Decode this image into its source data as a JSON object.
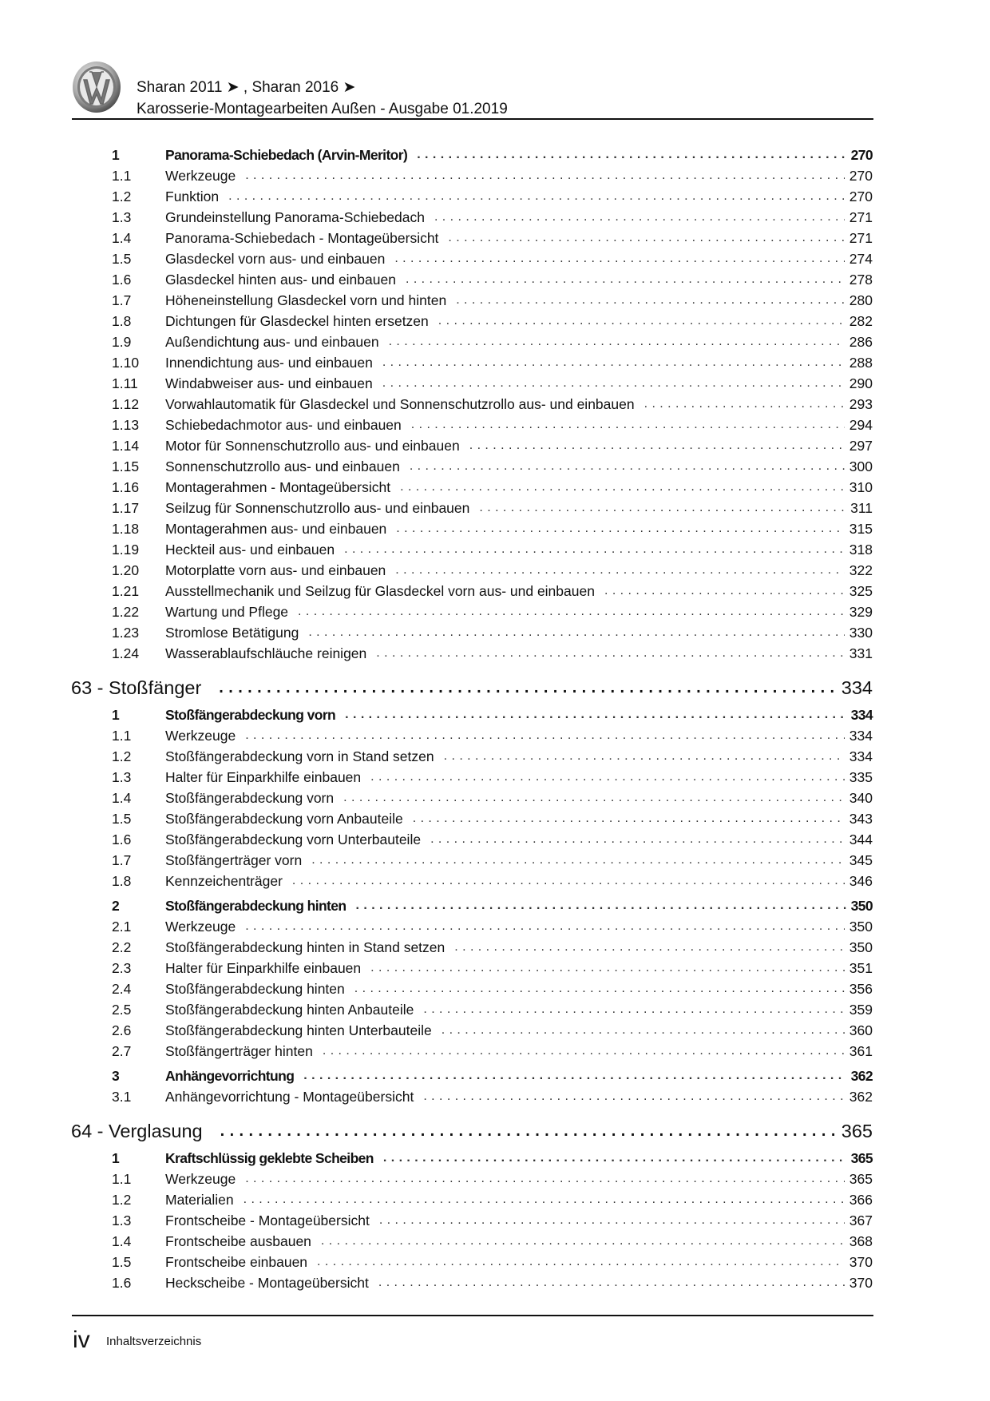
{
  "header": {
    "logo": "VW",
    "line1": "Sharan 2011 ➤ , Sharan 2016 ➤",
    "line2": "Karosserie-Montagearbeiten Außen - Ausgabe 01.2019"
  },
  "sections": [
    {
      "heading": null,
      "entries": [
        {
          "num": "1",
          "title": "Panorama-Schiebedach (Arvin-Meritor)",
          "page": "270",
          "bold": true
        },
        {
          "num": "1.1",
          "title": "Werkzeuge",
          "page": "270"
        },
        {
          "num": "1.2",
          "title": "Funktion",
          "page": "270"
        },
        {
          "num": "1.3",
          "title": "Grundeinstellung Panorama-Schiebedach",
          "page": "271"
        },
        {
          "num": "1.4",
          "title": "Panorama-Schiebedach - Montageübersicht",
          "page": "271"
        },
        {
          "num": "1.5",
          "title": "Glasdeckel vorn aus- und einbauen",
          "page": "274"
        },
        {
          "num": "1.6",
          "title": "Glasdeckel hinten aus- und einbauen",
          "page": "278"
        },
        {
          "num": "1.7",
          "title": "Höheneinstellung Glasdeckel vorn und hinten",
          "page": "280"
        },
        {
          "num": "1.8",
          "title": "Dichtungen für Glasdeckel hinten ersetzen",
          "page": "282"
        },
        {
          "num": "1.9",
          "title": "Außendichtung aus- und einbauen",
          "page": "286"
        },
        {
          "num": "1.10",
          "title": "Innendichtung aus- und einbauen",
          "page": "288"
        },
        {
          "num": "1.11",
          "title": "Windabweiser aus- und einbauen",
          "page": "290"
        },
        {
          "num": "1.12",
          "title": "Vorwahlautomatik für Glasdeckel und Sonnenschutzrollo aus- und einbauen",
          "page": "293"
        },
        {
          "num": "1.13",
          "title": "Schiebedachmotor aus- und einbauen",
          "page": "294"
        },
        {
          "num": "1.14",
          "title": "Motor für Sonnenschutzrollo aus- und einbauen",
          "page": "297"
        },
        {
          "num": "1.15",
          "title": "Sonnenschutzrollo aus- und einbauen",
          "page": "300"
        },
        {
          "num": "1.16",
          "title": "Montagerahmen - Montageübersicht",
          "page": "310"
        },
        {
          "num": "1.17",
          "title": "Seilzug für Sonnenschutzrollo aus- und einbauen",
          "page": "311"
        },
        {
          "num": "1.18",
          "title": "Montagerahmen aus- und einbauen",
          "page": "315"
        },
        {
          "num": "1.19",
          "title": "Heckteil aus- und einbauen",
          "page": "318"
        },
        {
          "num": "1.20",
          "title": "Motorplatte vorn aus- und einbauen",
          "page": "322"
        },
        {
          "num": "1.21",
          "title": "Ausstellmechanik und Seilzug für Glasdeckel vorn aus- und einbauen",
          "page": "325"
        },
        {
          "num": "1.22",
          "title": "Wartung und Pflege",
          "page": "329"
        },
        {
          "num": "1.23",
          "title": "Stromlose Betätigung",
          "page": "330"
        },
        {
          "num": "1.24",
          "title": "Wasserablaufschläuche reinigen",
          "page": "331"
        }
      ]
    },
    {
      "heading": {
        "title": "63 - Stoßfänger",
        "page": "334"
      },
      "entries": [
        {
          "num": "1",
          "title": "Stoßfängerabdeckung vorn",
          "page": "334",
          "bold": true
        },
        {
          "num": "1.1",
          "title": "Werkzeuge",
          "page": "334"
        },
        {
          "num": "1.2",
          "title": "Stoßfängerabdeckung vorn in Stand setzen",
          "page": "334"
        },
        {
          "num": "1.3",
          "title": "Halter für Einparkhilfe einbauen",
          "page": "335"
        },
        {
          "num": "1.4",
          "title": "Stoßfängerabdeckung vorn",
          "page": "340"
        },
        {
          "num": "1.5",
          "title": "Stoßfängerabdeckung vorn Anbauteile",
          "page": "343"
        },
        {
          "num": "1.6",
          "title": "Stoßfängerabdeckung vorn Unterbauteile",
          "page": "344"
        },
        {
          "num": "1.7",
          "title": "Stoßfängerträger vorn",
          "page": "345"
        },
        {
          "num": "1.8",
          "title": "Kennzeichenträger",
          "page": "346"
        },
        {
          "num": "2",
          "title": "Stoßfängerabdeckung hinten",
          "page": "350",
          "bold": true
        },
        {
          "num": "2.1",
          "title": "Werkzeuge",
          "page": "350"
        },
        {
          "num": "2.2",
          "title": "Stoßfängerabdeckung hinten in Stand setzen",
          "page": "350"
        },
        {
          "num": "2.3",
          "title": "Halter für Einparkhilfe einbauen",
          "page": "351"
        },
        {
          "num": "2.4",
          "title": "Stoßfängerabdeckung hinten",
          "page": "356"
        },
        {
          "num": "2.5",
          "title": "Stoßfängerabdeckung hinten Anbauteile",
          "page": "359"
        },
        {
          "num": "2.6",
          "title": "Stoßfängerabdeckung hinten Unterbauteile",
          "page": "360"
        },
        {
          "num": "2.7",
          "title": "Stoßfängerträger hinten",
          "page": "361"
        },
        {
          "num": "3",
          "title": "Anhängevorrichtung",
          "page": "362",
          "bold": true
        },
        {
          "num": "3.1",
          "title": "Anhängevorrichtung - Montageübersicht",
          "page": "362"
        }
      ]
    },
    {
      "heading": {
        "title": "64 - Verglasung",
        "page": "365"
      },
      "entries": [
        {
          "num": "1",
          "title": "Kraftschlüssig geklebte Scheiben",
          "page": "365",
          "bold": true
        },
        {
          "num": "1.1",
          "title": "Werkzeuge",
          "page": "365"
        },
        {
          "num": "1.2",
          "title": "Materialien",
          "page": "366"
        },
        {
          "num": "1.3",
          "title": "Frontscheibe - Montageübersicht",
          "page": "367"
        },
        {
          "num": "1.4",
          "title": "Frontscheibe ausbauen",
          "page": "368"
        },
        {
          "num": "1.5",
          "title": "Frontscheibe einbauen",
          "page": "370"
        },
        {
          "num": "1.6",
          "title": "Heckscheibe - Montageübersicht",
          "page": "370"
        }
      ]
    }
  ],
  "footer": {
    "page_number": "iv",
    "label": "Inhaltsverzeichnis"
  }
}
